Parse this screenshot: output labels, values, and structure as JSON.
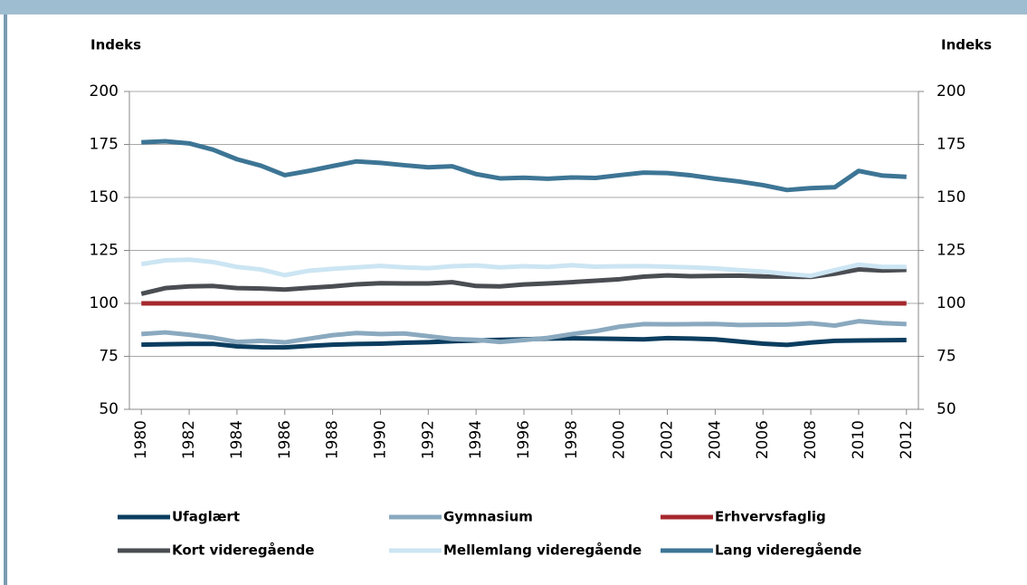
{
  "chart_data": {
    "type": "line",
    "ylabel": "Indeks",
    "y2label": "Indeks",
    "x": [
      1980,
      1981,
      1982,
      1983,
      1984,
      1985,
      1986,
      1987,
      1988,
      1989,
      1990,
      1991,
      1992,
      1993,
      1994,
      1995,
      1996,
      1997,
      1998,
      1999,
      2000,
      2001,
      2002,
      2003,
      2004,
      2005,
      2006,
      2007,
      2008,
      2009,
      2010,
      2011,
      2012
    ],
    "xlim": [
      1979.5,
      2012.5
    ],
    "xticks": [
      1980,
      1982,
      1984,
      1986,
      1988,
      1990,
      1992,
      1994,
      1996,
      1998,
      2000,
      2002,
      2004,
      2006,
      2008,
      2010,
      2012
    ],
    "ylim": [
      50,
      200
    ],
    "yticks": [
      50,
      75,
      100,
      125,
      150,
      175,
      200
    ],
    "y2lim": [
      50,
      200
    ],
    "y2ticks": [
      50,
      75,
      100,
      125,
      150,
      175,
      200
    ],
    "grid": true,
    "legend": "bottom",
    "series": [
      {
        "name": "Ufaglært",
        "color": "#0b3d5f",
        "values": [
          80.5,
          80.7,
          80.9,
          80.9,
          79.7,
          79.3,
          79.2,
          79.9,
          80.5,
          80.8,
          81.0,
          81.4,
          81.7,
          82.1,
          82.5,
          82.8,
          83.0,
          83.4,
          83.5,
          83.4,
          83.2,
          83.0,
          83.6,
          83.4,
          83.0,
          82.0,
          81.0,
          80.4,
          81.5,
          82.3,
          82.5,
          82.6,
          82.7
        ]
      },
      {
        "name": "Gymnasium",
        "color": "#8aa9bf",
        "values": [
          85.5,
          86.3,
          85.2,
          83.8,
          81.8,
          82.3,
          81.6,
          83.3,
          85.0,
          86.0,
          85.5,
          85.8,
          84.5,
          83.2,
          82.8,
          81.8,
          82.7,
          83.7,
          85.5,
          86.9,
          89.0,
          90.2,
          90.1,
          90.2,
          90.3,
          89.8,
          89.9,
          90.0,
          90.6,
          89.5,
          91.6,
          90.7,
          90.2
        ]
      },
      {
        "name": "Erhvervsfaglig",
        "color": "#a6282d",
        "values": [
          100,
          100,
          100,
          100,
          100,
          100,
          100,
          100,
          100,
          100,
          100,
          100,
          100,
          100,
          100,
          100,
          100,
          100,
          100,
          100,
          100,
          100,
          100,
          100,
          100,
          100,
          100,
          100,
          100,
          100,
          100,
          100,
          100
        ]
      },
      {
        "name": "Kort videregående",
        "color": "#4a4d52",
        "values": [
          104.5,
          107.2,
          108.0,
          108.2,
          107.2,
          107.0,
          106.5,
          107.3,
          108.0,
          109.0,
          109.5,
          109.4,
          109.4,
          110.0,
          108.2,
          108.0,
          108.9,
          109.4,
          110.0,
          110.7,
          111.4,
          112.6,
          113.2,
          112.8,
          113.0,
          113.1,
          112.7,
          112.6,
          112.5,
          114.0,
          116.0,
          115.5,
          115.8
        ]
      },
      {
        "name": "Mellemlang videregående",
        "color": "#cce5f3",
        "values": [
          118.5,
          120.3,
          120.6,
          119.5,
          117.2,
          116.0,
          113.3,
          115.4,
          116.3,
          117.0,
          117.7,
          117.0,
          116.6,
          117.5,
          117.9,
          117.0,
          117.5,
          117.2,
          118.0,
          117.3,
          117.5,
          117.6,
          117.3,
          117.0,
          116.5,
          115.7,
          115.0,
          113.9,
          113.0,
          115.7,
          118.3,
          117.2,
          117.2
        ]
      },
      {
        "name": "Lang videregående",
        "color": "#3d7595",
        "values": [
          176,
          176.5,
          175.5,
          172.5,
          168,
          165,
          160.5,
          162.5,
          164.8,
          167,
          166.3,
          165.2,
          164.2,
          164.7,
          161,
          159,
          159.3,
          158.8,
          159.4,
          159.2,
          160.5,
          161.7,
          161.5,
          160.4,
          158.8,
          157.5,
          155.8,
          153.5,
          154.4,
          154.8,
          162.5,
          160.3,
          159.7
        ]
      }
    ]
  }
}
